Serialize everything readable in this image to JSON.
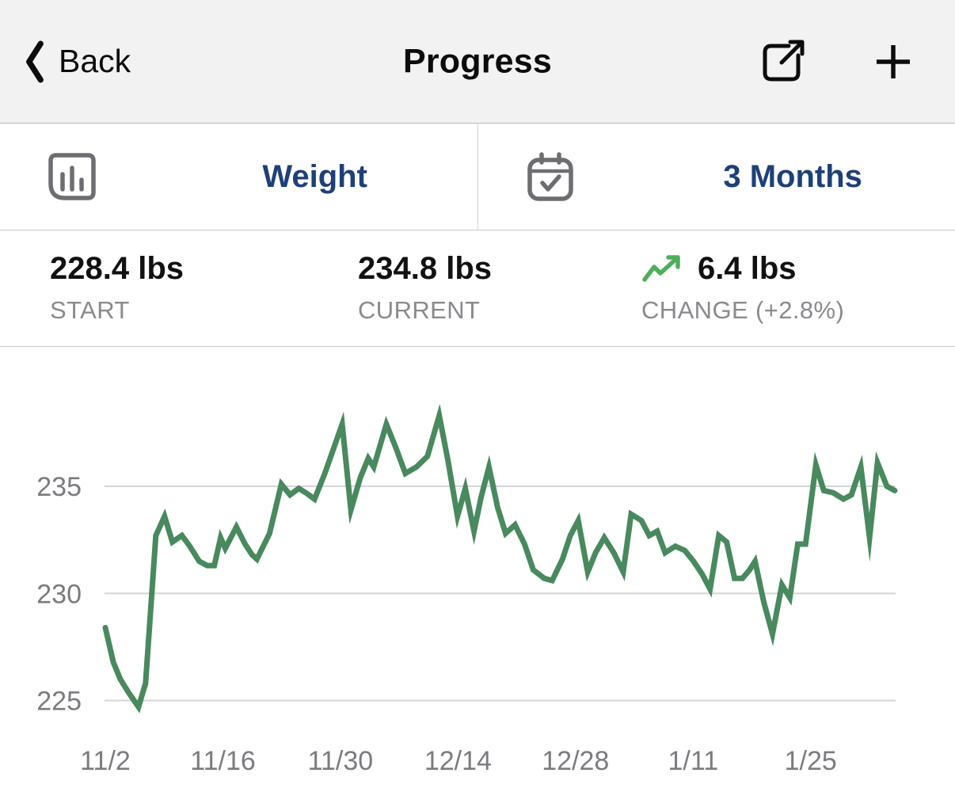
{
  "nav": {
    "back_label": "Back",
    "title": "Progress"
  },
  "selector": {
    "metric": {
      "label": "Weight"
    },
    "range": {
      "label": "3 Months"
    }
  },
  "stats": {
    "start": {
      "value": "228.4 lbs",
      "label": "START"
    },
    "current": {
      "value": "234.8 lbs",
      "label": "CURRENT"
    },
    "change": {
      "value": "6.4 lbs",
      "label": "CHANGE (+2.8%)"
    }
  },
  "colors": {
    "accent_blue": "#1e4078",
    "line_green": "#48895e",
    "trend_green": "#4fae5c",
    "icon_gray": "#6d6d72",
    "grid": "#d5d5d7",
    "axis_text": "#7b7b80"
  },
  "chart_data": {
    "type": "line",
    "title": "Weight over 3 months",
    "unit": "lbs",
    "series_name": "Weight",
    "y_ticks": [
      235,
      230,
      225
    ],
    "ylim": [
      224,
      239
    ],
    "x_tick_labels": [
      "11/2",
      "11/16",
      "11/30",
      "12/14",
      "12/28",
      "1/11",
      "1/25"
    ],
    "x_tick_interval_days": 14,
    "grid": "horizontal",
    "start_value": 228.4,
    "current_value": 234.8,
    "change_value": 6.4,
    "change_percent": 2.8,
    "points": [
      [
        0.0,
        228.4
      ],
      [
        0.01,
        226.8
      ],
      [
        0.019,
        226.0
      ],
      [
        0.029,
        225.4
      ],
      [
        0.042,
        224.7
      ],
      [
        0.051,
        225.8
      ],
      [
        0.064,
        232.7
      ],
      [
        0.075,
        233.6
      ],
      [
        0.085,
        232.4
      ],
      [
        0.097,
        232.7
      ],
      [
        0.107,
        232.2
      ],
      [
        0.119,
        231.5
      ],
      [
        0.129,
        231.3
      ],
      [
        0.138,
        231.3
      ],
      [
        0.146,
        232.6
      ],
      [
        0.152,
        232.1
      ],
      [
        0.166,
        233.1
      ],
      [
        0.177,
        232.3
      ],
      [
        0.186,
        231.8
      ],
      [
        0.192,
        231.6
      ],
      [
        0.208,
        232.8
      ],
      [
        0.223,
        235.1
      ],
      [
        0.234,
        234.6
      ],
      [
        0.245,
        234.9
      ],
      [
        0.254,
        234.7
      ],
      [
        0.265,
        234.4
      ],
      [
        0.278,
        235.6
      ],
      [
        0.3,
        237.9
      ],
      [
        0.311,
        233.9
      ],
      [
        0.323,
        235.4
      ],
      [
        0.333,
        236.3
      ],
      [
        0.34,
        235.9
      ],
      [
        0.356,
        237.9
      ],
      [
        0.368,
        236.8
      ],
      [
        0.38,
        235.6
      ],
      [
        0.394,
        235.9
      ],
      [
        0.408,
        236.4
      ],
      [
        0.423,
        238.3
      ],
      [
        0.434,
        236.2
      ],
      [
        0.446,
        233.6
      ],
      [
        0.456,
        234.9
      ],
      [
        0.467,
        232.9
      ],
      [
        0.476,
        234.5
      ],
      [
        0.486,
        235.9
      ],
      [
        0.497,
        234.0
      ],
      [
        0.507,
        232.8
      ],
      [
        0.519,
        233.2
      ],
      [
        0.531,
        232.3
      ],
      [
        0.542,
        231.1
      ],
      [
        0.556,
        230.7
      ],
      [
        0.566,
        230.6
      ],
      [
        0.579,
        231.6
      ],
      [
        0.589,
        232.7
      ],
      [
        0.599,
        233.4
      ],
      [
        0.611,
        231.0
      ],
      [
        0.621,
        231.9
      ],
      [
        0.632,
        232.6
      ],
      [
        0.644,
        231.9
      ],
      [
        0.656,
        231.0
      ],
      [
        0.666,
        233.7
      ],
      [
        0.679,
        233.4
      ],
      [
        0.689,
        232.7
      ],
      [
        0.699,
        232.9
      ],
      [
        0.709,
        231.9
      ],
      [
        0.722,
        232.2
      ],
      [
        0.734,
        232.0
      ],
      [
        0.745,
        231.5
      ],
      [
        0.756,
        230.9
      ],
      [
        0.766,
        230.2
      ],
      [
        0.777,
        232.7
      ],
      [
        0.787,
        232.4
      ],
      [
        0.797,
        230.7
      ],
      [
        0.807,
        230.7
      ],
      [
        0.816,
        231.1
      ],
      [
        0.823,
        231.5
      ],
      [
        0.834,
        229.6
      ],
      [
        0.845,
        228.1
      ],
      [
        0.857,
        230.4
      ],
      [
        0.867,
        229.8
      ],
      [
        0.877,
        232.3
      ],
      [
        0.887,
        232.3
      ],
      [
        0.9,
        236.0
      ],
      [
        0.91,
        234.8
      ],
      [
        0.922,
        234.7
      ],
      [
        0.935,
        234.4
      ],
      [
        0.945,
        234.6
      ],
      [
        0.957,
        235.9
      ],
      [
        0.968,
        232.6
      ],
      [
        0.978,
        236.1
      ],
      [
        0.99,
        235.0
      ],
      [
        1.0,
        234.8
      ]
    ]
  }
}
